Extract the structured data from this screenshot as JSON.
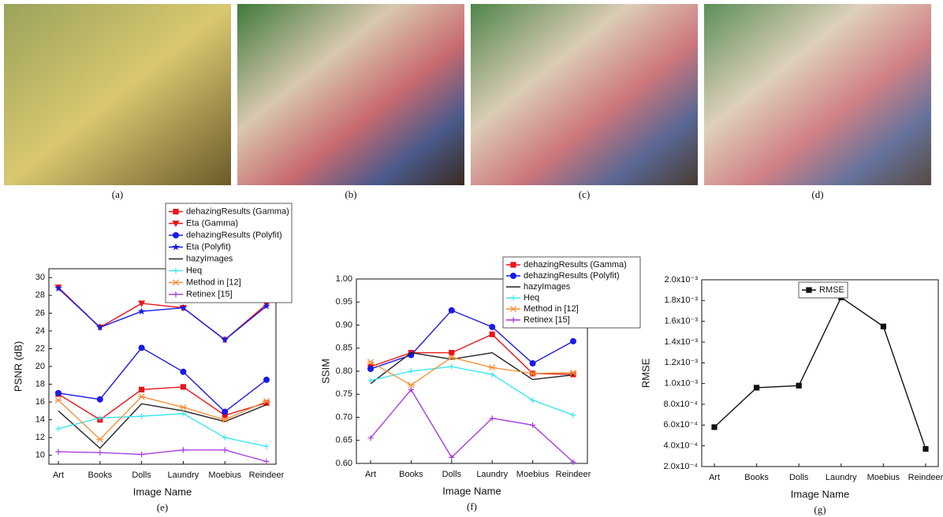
{
  "images": [
    "(a)",
    "(b)",
    "(c)",
    "(d)"
  ],
  "chart_data": [
    {
      "type": "line",
      "caption": "(e)",
      "x_label": "Image Name",
      "y_label": "PSNR (dB)",
      "categories": [
        "Art",
        "Books",
        "Dolls",
        "Laundry",
        "Moebius",
        "Reindeer"
      ],
      "ylim": [
        9,
        31
      ],
      "yticks": [
        10,
        12,
        14,
        16,
        18,
        20,
        22,
        24,
        26,
        28,
        30
      ],
      "series": [
        {
          "name": "dehazingResults (Gamma)",
          "color": "#e8161b",
          "marker": "square",
          "values": [
            16.9,
            14.0,
            17.4,
            17.7,
            14.5,
            15.9
          ]
        },
        {
          "name": "Eta (Gamma)",
          "color": "#e8161b",
          "marker": "triangle-down",
          "values": [
            28.9,
            24.4,
            27.1,
            26.6,
            23.0,
            27.0
          ]
        },
        {
          "name": "dehazingResults (Polyfit)",
          "color": "#1a1ae6",
          "marker": "circle",
          "values": [
            17.0,
            16.3,
            22.1,
            19.4,
            14.9,
            18.5
          ]
        },
        {
          "name": "Eta (Polyfit)",
          "color": "#1a1ae6",
          "marker": "star",
          "values": [
            28.8,
            24.4,
            26.2,
            26.6,
            23.0,
            26.8
          ]
        },
        {
          "name": "hazyImages",
          "color": "#222222",
          "marker": "none",
          "values": [
            15.0,
            10.8,
            15.8,
            15.0,
            13.8,
            15.7
          ]
        },
        {
          "name": "Heq",
          "color": "#3ee6f0",
          "marker": "plus",
          "values": [
            13.0,
            14.2,
            14.4,
            14.7,
            12.0,
            11.0
          ]
        },
        {
          "name": "Method in [12]",
          "color": "#f5913a",
          "marker": "cross",
          "values": [
            16.2,
            11.8,
            16.6,
            15.4,
            14.0,
            16.1
          ]
        },
        {
          "name": "Retinex [15]",
          "color": "#a63ee0",
          "marker": "plus",
          "values": [
            10.4,
            10.3,
            10.1,
            10.6,
            10.6,
            9.3
          ]
        }
      ]
    },
    {
      "type": "line",
      "caption": "(f)",
      "x_label": "Image Name",
      "y_label": "SSIM",
      "categories": [
        "Art",
        "Books",
        "Dolls",
        "Laundry",
        "Moebius",
        "Reindeer"
      ],
      "ylim": [
        0.6,
        1.0
      ],
      "yticks": [
        {
          "value": 0.6,
          "label": "0.60"
        },
        {
          "value": 0.65,
          "label": "0.65"
        },
        {
          "value": 0.7,
          "label": "0.70"
        },
        {
          "value": 0.75,
          "label": "0.75"
        },
        {
          "value": 0.8,
          "label": "0.80"
        },
        {
          "value": 0.85,
          "label": "0.85"
        },
        {
          "value": 0.9,
          "label": "0.90"
        },
        {
          "value": 0.95,
          "label": "0.95"
        },
        {
          "value": 1.0,
          "label": "1.00"
        }
      ],
      "series": [
        {
          "name": "dehazingResults (Gamma)",
          "color": "#e8161b",
          "marker": "square",
          "values": [
            0.81,
            0.84,
            0.84,
            0.88,
            0.795,
            0.793
          ]
        },
        {
          "name": "dehazingResults (Polyfit)",
          "color": "#1a1ae6",
          "marker": "circle",
          "values": [
            0.805,
            0.835,
            0.932,
            0.896,
            0.817,
            0.865
          ]
        },
        {
          "name": "hazyImages",
          "color": "#222222",
          "marker": "none",
          "values": [
            0.773,
            0.84,
            0.826,
            0.84,
            0.782,
            0.792
          ]
        },
        {
          "name": "Heq",
          "color": "#3ee6f0",
          "marker": "plus",
          "values": [
            0.78,
            0.8,
            0.81,
            0.793,
            0.737,
            0.705
          ]
        },
        {
          "name": "Method in [12]",
          "color": "#f5913a",
          "marker": "cross",
          "values": [
            0.82,
            0.77,
            0.83,
            0.808,
            0.795,
            0.797
          ]
        },
        {
          "name": "Retinex [15]",
          "color": "#a63ee0",
          "marker": "plus",
          "values": [
            0.655,
            0.76,
            0.613,
            0.698,
            0.683,
            0.603
          ]
        }
      ]
    },
    {
      "type": "line",
      "caption": "(g)",
      "x_label": "Image Name",
      "y_label": "RMSE",
      "categories": [
        "Art",
        "Books",
        "Dolls",
        "Laundry",
        "Moebius",
        "Reindeer"
      ],
      "ylim": [
        0.0002,
        0.002
      ],
      "yticks": [
        {
          "value": 0.0002,
          "label": "2.0x10⁻⁴"
        },
        {
          "value": 0.0004,
          "label": "4.0x10⁻⁴"
        },
        {
          "value": 0.0006,
          "label": "6.0x10⁻⁴"
        },
        {
          "value": 0.0008,
          "label": "8.0x10⁻⁴"
        },
        {
          "value": 0.001,
          "label": "1.0x10⁻³"
        },
        {
          "value": 0.0012,
          "label": "1.2x10⁻³"
        },
        {
          "value": 0.0014,
          "label": "1.4x10⁻³"
        },
        {
          "value": 0.0016,
          "label": "1.6x10⁻³"
        },
        {
          "value": 0.0018,
          "label": "1.8x10⁻³"
        },
        {
          "value": 0.002,
          "label": "2.0x10⁻³"
        }
      ],
      "series": [
        {
          "name": "RMSE",
          "color": "#111111",
          "marker": "square",
          "values": [
            0.00058,
            0.00096,
            0.00098,
            0.00183,
            0.00155,
            0.00037
          ]
        }
      ]
    }
  ]
}
